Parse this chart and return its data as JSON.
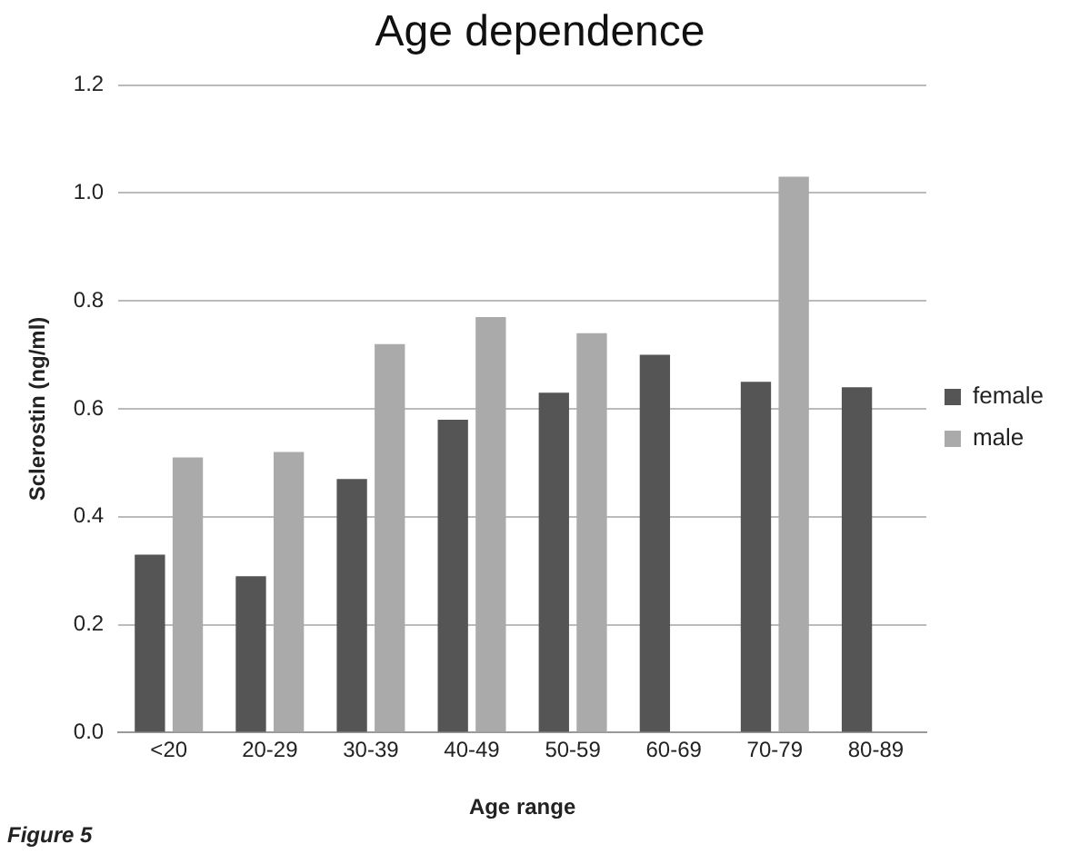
{
  "chart_data": {
    "type": "bar",
    "title": "Age dependence",
    "xlabel": "Age range",
    "ylabel": "Sclerostin (ng/ml)",
    "categories": [
      "<20",
      "20-29",
      "30-39",
      "40-49",
      "50-59",
      "60-69",
      "70-79",
      "80-89"
    ],
    "series": [
      {
        "name": "female",
        "color": "#555555",
        "values": [
          0.33,
          0.29,
          0.47,
          0.58,
          0.63,
          0.7,
          0.65,
          0.64
        ]
      },
      {
        "name": "male",
        "color": "#aaaaaa",
        "values": [
          0.51,
          0.52,
          0.72,
          0.77,
          0.74,
          null,
          1.03,
          null
        ]
      }
    ],
    "ylim": [
      0,
      1.2
    ],
    "yticks": [
      {
        "value": 0,
        "label": "0.0"
      },
      0.2,
      0.4,
      0.6,
      0.8,
      {
        "value": 1,
        "label": "1.0"
      },
      1.2
    ],
    "grid": "y",
    "legend": "right",
    "annotations": [
      "Figure 5"
    ]
  }
}
